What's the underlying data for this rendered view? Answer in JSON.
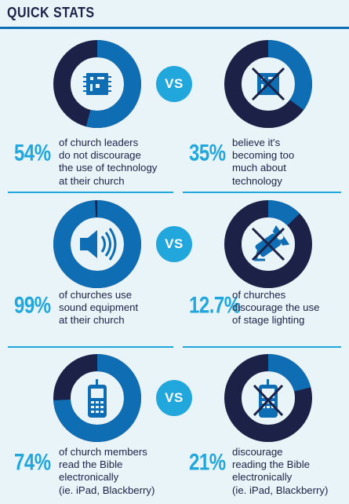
{
  "header": {
    "title": "QUICK STATS"
  },
  "colors": {
    "dark": "#1c2147",
    "mid": "#0f6db3",
    "light": "#22a7dd",
    "bg": "#e9f4f8"
  },
  "rows": [
    {
      "vs_label": "VS",
      "left": {
        "icon": "circuit-chip-icon",
        "percent": "54%",
        "fraction": 0.54,
        "text": "of church leaders\ndo not discourage\nthe use of technology\nat their church"
      },
      "right": {
        "icon": "crossed-circuit-chip-icon",
        "percent": "35%",
        "fraction": 0.35,
        "text": "believe it's\nbecoming too\nmuch about\ntechnology"
      }
    },
    {
      "vs_label": "VS",
      "left": {
        "icon": "speaker-icon",
        "percent": "99%",
        "fraction": 0.99,
        "text": "of churches use\nsound equipment\nat their church"
      },
      "right": {
        "icon": "crossed-stage-light-icon",
        "percent": "12.7%",
        "fraction": 0.127,
        "text": "of churches\ndiscourage the use\nof stage lighting"
      }
    },
    {
      "vs_label": "VS",
      "left": {
        "icon": "mobile-phone-icon",
        "percent": "74%",
        "fraction": 0.74,
        "text": "of church members\nread the Bible\nelectronically\n(ie. iPad, Blackberry)"
      },
      "right": {
        "icon": "crossed-mobile-phone-icon",
        "percent": "21%",
        "fraction": 0.21,
        "text": "discourage\nreading the Bible\nelectronically\n(ie. iPad, Blackberry)"
      }
    }
  ]
}
